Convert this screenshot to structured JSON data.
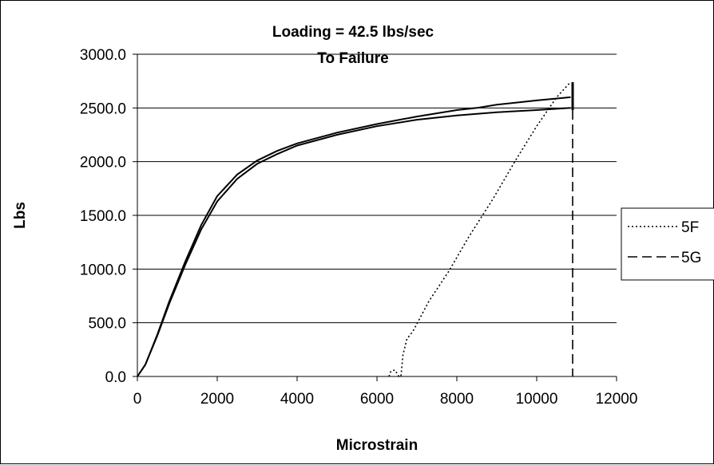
{
  "chart_data": {
    "type": "line",
    "title": "Loading = 42.5 lbs/sec",
    "subtitle": "To Failure",
    "xlabel": "Microstrain",
    "ylabel": "Lbs",
    "xlim": [
      0,
      12000
    ],
    "ylim": [
      0,
      3000
    ],
    "xticks": [
      "0",
      "2000",
      "4000",
      "6000",
      "8000",
      "10000",
      "12000"
    ],
    "xtick_values": [
      0,
      2000,
      4000,
      6000,
      8000,
      10000,
      12000
    ],
    "yticks": [
      "0.0",
      "500.0",
      "1000.0",
      "1500.0",
      "2000.0",
      "2500.0",
      "3000.0"
    ],
    "ytick_values": [
      0,
      500,
      1000,
      1500,
      2000,
      2500,
      3000
    ],
    "grid": "horizontal",
    "legend_position": "right",
    "series": [
      {
        "name": "5F",
        "style": "dotted",
        "color": "#000000",
        "points": [
          [
            6300,
            0
          ],
          [
            6350,
            50
          ],
          [
            6450,
            60
          ],
          [
            6550,
            0
          ],
          [
            6600,
            0
          ],
          [
            6650,
            200
          ],
          [
            6750,
            350
          ],
          [
            6900,
            420
          ],
          [
            7300,
            700
          ],
          [
            7800,
            980
          ],
          [
            8300,
            1300
          ],
          [
            8900,
            1650
          ],
          [
            9500,
            2030
          ],
          [
            10000,
            2330
          ],
          [
            10500,
            2600
          ],
          [
            10820,
            2730
          ]
        ]
      },
      {
        "name": "5G",
        "style": "dashed",
        "color": "#000000",
        "points": [
          [
            10900,
            2480
          ],
          [
            10900,
            0
          ]
        ]
      },
      {
        "name": "",
        "style": "solid",
        "color": "#000000",
        "points": [
          [
            0,
            0
          ],
          [
            200,
            110
          ],
          [
            500,
            380
          ],
          [
            800,
            680
          ],
          [
            1200,
            1040
          ],
          [
            1600,
            1370
          ],
          [
            2000,
            1630
          ],
          [
            2500,
            1840
          ],
          [
            3000,
            1980
          ],
          [
            3500,
            2070
          ],
          [
            4000,
            2150
          ],
          [
            5000,
            2250
          ],
          [
            6000,
            2330
          ],
          [
            7000,
            2390
          ],
          [
            8000,
            2430
          ],
          [
            9000,
            2460
          ],
          [
            10000,
            2480
          ],
          [
            10850,
            2500
          ]
        ]
      },
      {
        "name": "",
        "style": "solid",
        "color": "#000000",
        "points": [
          [
            0,
            0
          ],
          [
            200,
            110
          ],
          [
            500,
            390
          ],
          [
            800,
            700
          ],
          [
            1200,
            1070
          ],
          [
            1600,
            1410
          ],
          [
            2000,
            1680
          ],
          [
            2500,
            1880
          ],
          [
            3000,
            2010
          ],
          [
            3500,
            2100
          ],
          [
            4000,
            2170
          ],
          [
            5000,
            2270
          ],
          [
            6000,
            2350
          ],
          [
            7000,
            2420
          ],
          [
            8000,
            2480
          ],
          [
            8500,
            2500
          ],
          [
            9000,
            2530
          ],
          [
            10000,
            2570
          ],
          [
            10850,
            2600
          ]
        ]
      }
    ],
    "failure_mark": {
      "x": 10900,
      "y_range": [
        2480,
        2740
      ]
    }
  }
}
